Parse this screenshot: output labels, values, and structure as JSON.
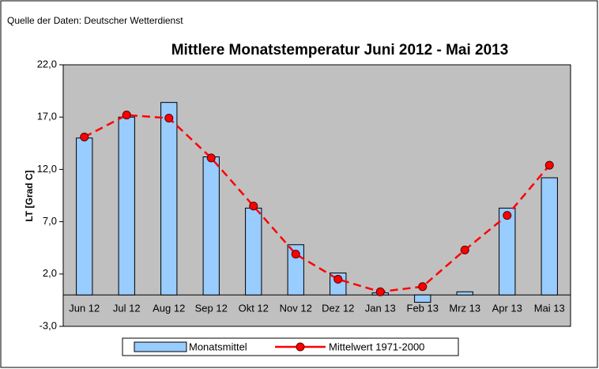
{
  "chart_data": {
    "type": "bar_line",
    "source": "Quelle der Daten: Deutscher Wetterdienst",
    "title": "Mittlere Monatstemperatur Juni 2012 - Mai 2013",
    "y_label": "LT [Grad C]",
    "categories": [
      "Jun 12",
      "Jul 12",
      "Aug 12",
      "Sep 12",
      "Okt 12",
      "Nov 12",
      "Dez 12",
      "Jan 13",
      "Feb 13",
      "Mrz 13",
      "Apr 13",
      "Mai 13"
    ],
    "series": [
      {
        "name": "Monatsmittel",
        "type": "bar",
        "color": "#99ccff",
        "values": [
          15.0,
          17.0,
          18.4,
          13.2,
          8.3,
          4.8,
          2.1,
          0.2,
          -0.7,
          0.3,
          8.3,
          11.2
        ]
      },
      {
        "name": "Mittelwert 1971-2000",
        "type": "line",
        "color": "#ff0000",
        "values": [
          15.1,
          17.2,
          16.9,
          13.1,
          8.5,
          3.9,
          1.5,
          0.3,
          0.8,
          4.3,
          7.6,
          12.4
        ]
      }
    ],
    "ylim": [
      -3,
      22
    ],
    "yticks": [
      {
        "value": -3,
        "label": "-3,0"
      },
      {
        "value": 2,
        "label": "2,0"
      },
      {
        "value": 7,
        "label": "7,0"
      },
      {
        "value": 12,
        "label": "12,0"
      },
      {
        "value": 17,
        "label": "17,0"
      },
      {
        "value": 22,
        "label": "22,0"
      }
    ],
    "plot_background": "#c0c0c0"
  }
}
